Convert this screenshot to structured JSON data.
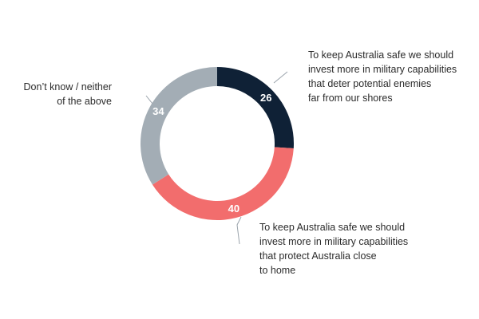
{
  "colors": {
    "navy": "#0f2136",
    "coral": "#f26d6d",
    "grey": "#a3adb5",
    "text": "#2b2b2b"
  },
  "chart_data": {
    "type": "pie",
    "donut": true,
    "title": "",
    "legend": "none",
    "slices": [
      {
        "value": 26,
        "label_lines": [
          "To keep Australia safe we should",
          "invest more in military capabilities",
          "that deter potential enemies",
          "far from our shores"
        ],
        "color": "#0f2136"
      },
      {
        "value": 40,
        "label_lines": [
          "To keep Australia safe we should",
          "invest more in military capabilities",
          "that protect Australia close",
          "to home"
        ],
        "color": "#f26d6d"
      },
      {
        "value": 34,
        "label_lines": [
          "Don’t know / neither",
          "of the above"
        ],
        "color": "#a3adb5"
      }
    ]
  }
}
